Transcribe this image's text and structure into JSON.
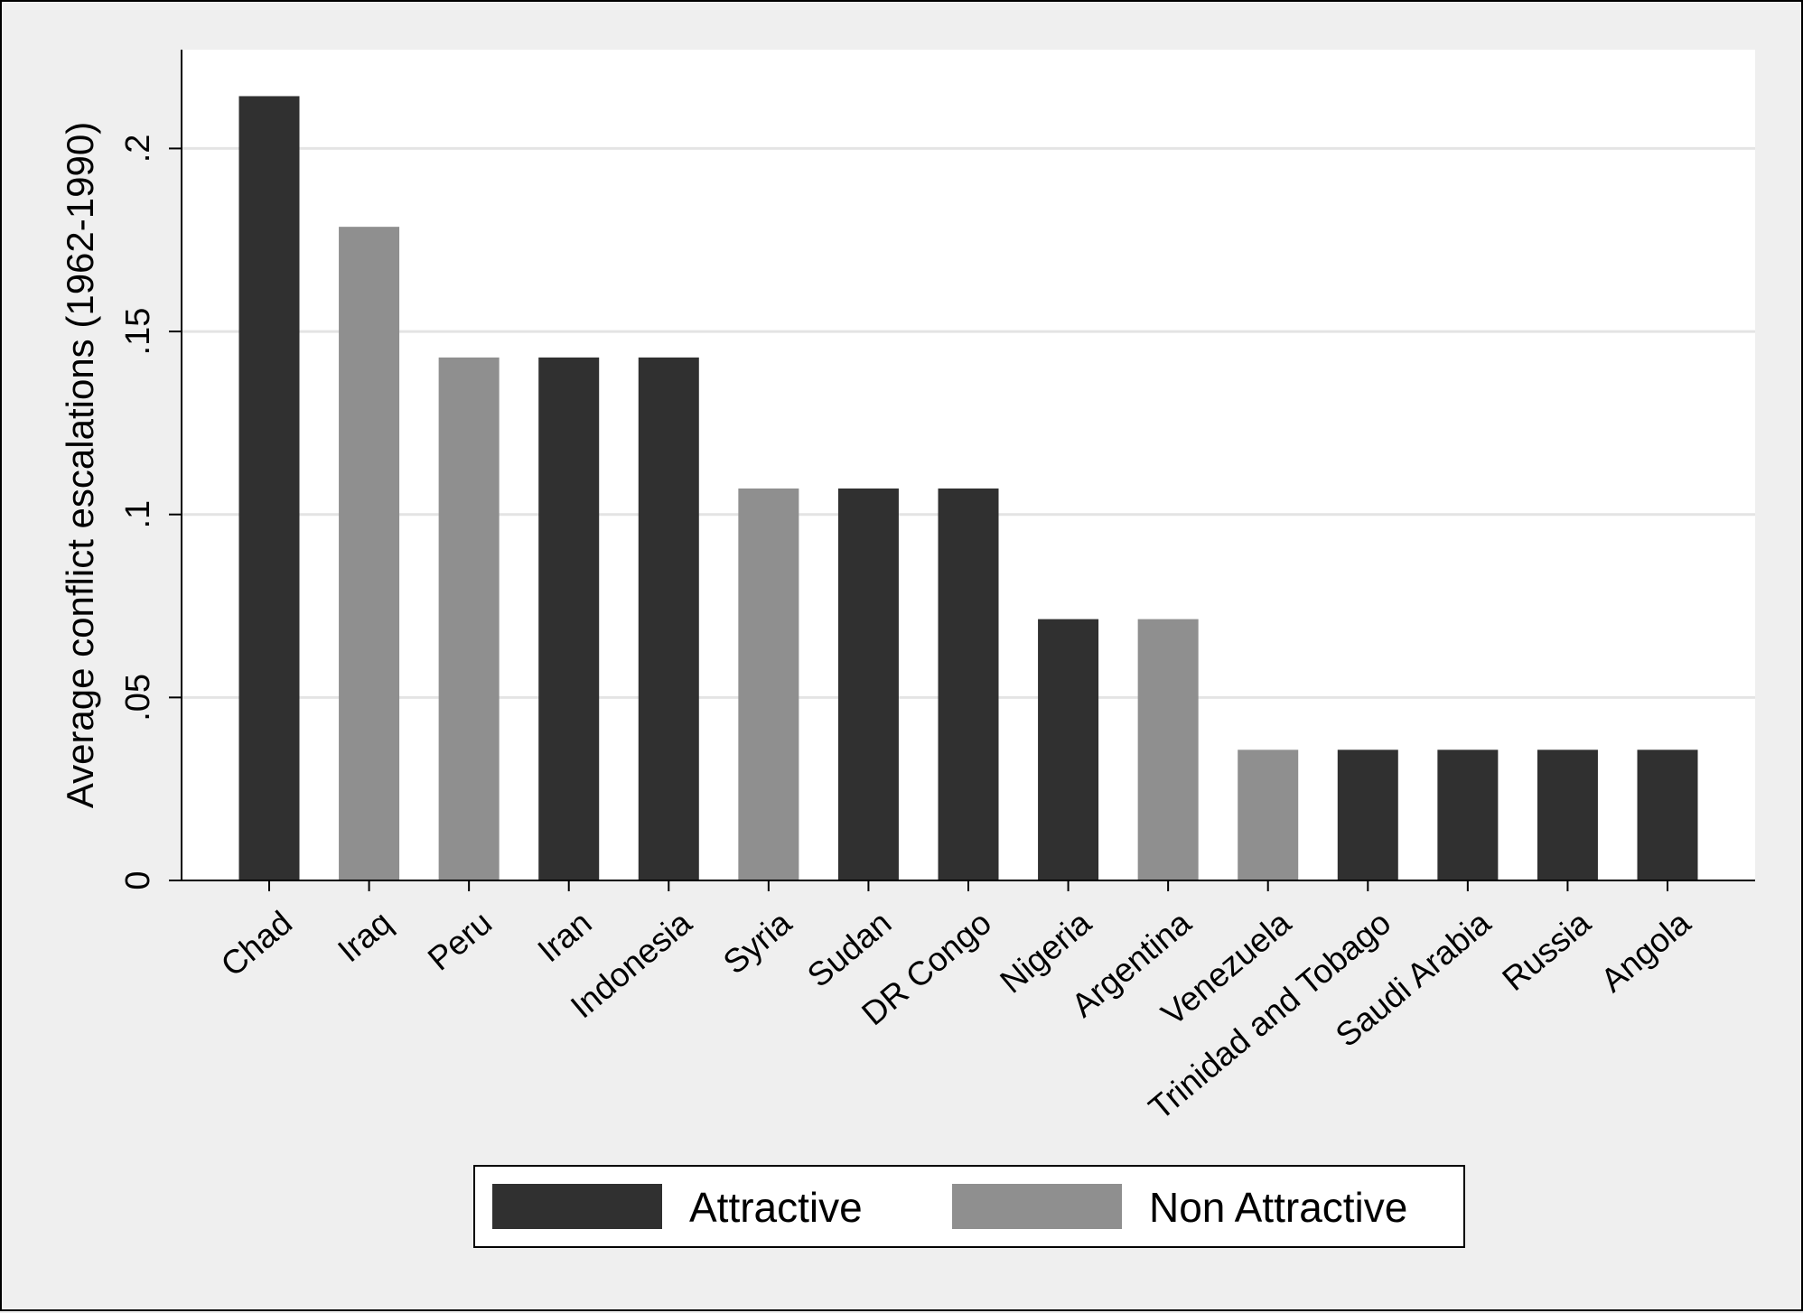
{
  "chart_data": {
    "type": "bar",
    "title": "",
    "xlabel": "",
    "ylabel": "Average conflict escalations (1962-1990)",
    "ylim": [
      0,
      0.227
    ],
    "yticks": [
      {
        "value": 0,
        "label": "0"
      },
      {
        "value": 0.05,
        "label": ".05"
      },
      {
        "value": 0.1,
        "label": ".1"
      },
      {
        "value": 0.15,
        "label": ".15"
      },
      {
        "value": 0.2,
        "label": ".2"
      }
    ],
    "grid": true,
    "legend_position": "bottom",
    "categories": [
      "Chad",
      "Iraq",
      "Peru",
      "Iran",
      "Indonesia",
      "Syria",
      "Sudan",
      "DR Congo",
      "Nigeria",
      "Argentina",
      "Venezuela",
      "Trinidad and Tobago",
      "Saudi Arabia",
      "Russia",
      "Angola"
    ],
    "values": [
      0.2143,
      0.1786,
      0.1429,
      0.1429,
      0.1429,
      0.1071,
      0.1071,
      0.1071,
      0.0714,
      0.0714,
      0.0357,
      0.0357,
      0.0357,
      0.0357,
      0.0357
    ],
    "groups": [
      "Attractive",
      "Non Attractive",
      "Non Attractive",
      "Attractive",
      "Attractive",
      "Non Attractive",
      "Attractive",
      "Attractive",
      "Attractive",
      "Non Attractive",
      "Non Attractive",
      "Attractive",
      "Attractive",
      "Attractive",
      "Attractive"
    ],
    "series": [
      {
        "name": "Attractive",
        "color": "#303030"
      },
      {
        "name": "Non Attractive",
        "color": "#8f8f8f"
      }
    ]
  }
}
